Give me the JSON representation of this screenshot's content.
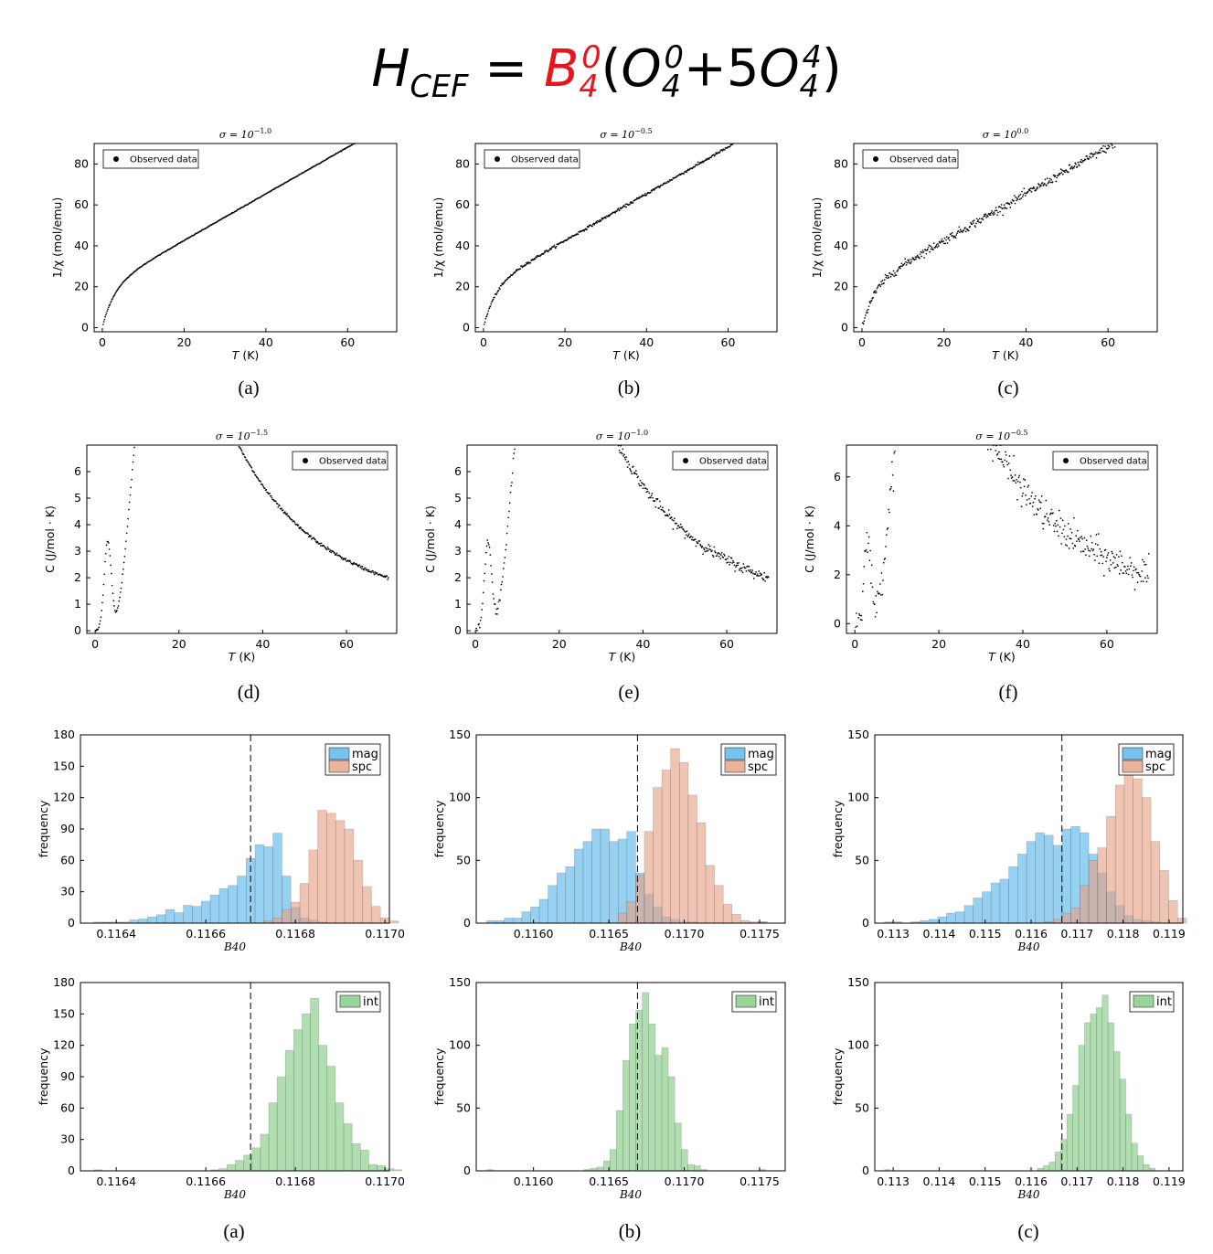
{
  "formula": {
    "lhs_main": "H",
    "lhs_sub": "CEF",
    "equals": "=",
    "coef_main": "B",
    "coef_sub": "4",
    "coef_sup": "0",
    "open": "(",
    "op1_main": "O",
    "op1_sub": "4",
    "op1_sup": "0",
    "plus": "+5",
    "op2_main": "O",
    "op2_sub": "4",
    "op2_sup": "4",
    "close": ")"
  },
  "colors": {
    "mag": "#56b4e9",
    "spc": "#e69f84",
    "int": "#7fc97f",
    "formula_highlight": "#e8141e"
  },
  "chart_data": [
    {
      "id": "chi-a",
      "type": "scatter",
      "caption": "(a)",
      "title": "σ = 10",
      "title_exp": "−1.0",
      "xlabel": "T (K)",
      "ylabel": "1/χ (mol/emu)",
      "xlim": [
        -2,
        72
      ],
      "ylim": [
        -2,
        90
      ],
      "xticks": [
        0,
        20,
        40,
        60
      ],
      "yticks": [
        0,
        20,
        40,
        60,
        80
      ],
      "legend": "Observed data",
      "legend_position": "top-left",
      "curve": "inv_susceptibility",
      "noise": 0.1,
      "n_points": 420
    },
    {
      "id": "chi-b",
      "type": "scatter",
      "caption": "(b)",
      "title": "σ = 10",
      "title_exp": "−0.5",
      "xlabel": "T (K)",
      "ylabel": "1/χ (mol/emu)",
      "xlim": [
        -2,
        72
      ],
      "ylim": [
        -2,
        90
      ],
      "xticks": [
        0,
        20,
        40,
        60
      ],
      "yticks": [
        0,
        20,
        40,
        60,
        80
      ],
      "legend": "Observed data",
      "legend_position": "top-left",
      "curve": "inv_susceptibility",
      "noise": 0.32,
      "n_points": 420
    },
    {
      "id": "chi-c",
      "type": "scatter",
      "caption": "(c)",
      "title": "σ = 10",
      "title_exp": "0.0",
      "xlabel": "T (K)",
      "ylabel": "1/χ (mol/emu)",
      "xlim": [
        -2,
        72
      ],
      "ylim": [
        -2,
        90
      ],
      "xticks": [
        0,
        20,
        40,
        60
      ],
      "yticks": [
        0,
        20,
        40,
        60,
        80
      ],
      "legend": "Observed data",
      "legend_position": "top-left",
      "curve": "inv_susceptibility",
      "noise": 1.0,
      "n_points": 420
    },
    {
      "id": "heat-d",
      "type": "scatter",
      "caption": "(d)",
      "title": "σ = 10",
      "title_exp": "−1.5",
      "xlabel": "T (K)",
      "ylabel": "C (J/mol · K)",
      "xlim": [
        -2,
        72
      ],
      "ylim": [
        -0.1,
        7.0
      ],
      "xticks": [
        0,
        20,
        40,
        60
      ],
      "yticks": [
        0,
        1,
        2,
        3,
        4,
        5,
        6
      ],
      "legend": "Observed data",
      "legend_position": "top-right",
      "curve": "specific_heat",
      "noise": 0.03,
      "n_points": 420
    },
    {
      "id": "heat-e",
      "type": "scatter",
      "caption": "(e)",
      "title": "σ = 10",
      "title_exp": "−1.0",
      "xlabel": "T (K)",
      "ylabel": "C (J/mol · K)",
      "xlim": [
        -2,
        72
      ],
      "ylim": [
        -0.1,
        7.0
      ],
      "xticks": [
        0,
        20,
        40,
        60
      ],
      "yticks": [
        0,
        1,
        2,
        3,
        4,
        5,
        6
      ],
      "legend": "Observed data",
      "legend_position": "top-right",
      "curve": "specific_heat",
      "noise": 0.1,
      "n_points": 420
    },
    {
      "id": "heat-f",
      "type": "scatter",
      "caption": "(f)",
      "title": "σ = 10",
      "title_exp": "−0.5",
      "xlabel": "T (K)",
      "ylabel": "C (J/mol · K)",
      "xlim": [
        -2,
        72
      ],
      "ylim": [
        -0.4,
        7.3
      ],
      "xticks": [
        0,
        20,
        40,
        60
      ],
      "yticks": [
        0,
        2,
        4,
        6
      ],
      "legend": "Observed data",
      "legend_position": "top-right",
      "curve": "specific_heat",
      "noise": 0.32,
      "n_points": 420
    },
    {
      "id": "hist-a",
      "type": "histogram",
      "caption": "",
      "xlabel": "B40",
      "ylabel": "frequency",
      "xlim": [
        0.11632,
        0.11701
      ],
      "ylim": [
        0,
        180
      ],
      "xticks": [
        0.1164,
        0.1166,
        0.1168,
        0.117
      ],
      "xtick_labels": [
        "0.1164",
        "0.1166",
        "0.1168",
        "0.1170"
      ],
      "yticks": [
        0,
        30,
        60,
        90,
        120,
        150,
        180
      ],
      "true_value": 0.1167,
      "legend_position": "top-right",
      "bins_start": 0.11635,
      "bin_width": 2e-05,
      "series": [
        {
          "name": "mag",
          "counts": [
            1,
            1,
            1,
            1,
            3,
            4,
            6,
            8,
            13,
            10,
            17,
            16,
            21,
            27,
            33,
            36,
            45,
            62,
            75,
            73,
            86,
            45,
            15,
            5,
            3,
            1,
            0,
            0,
            0,
            0,
            0,
            0,
            0,
            0
          ]
        },
        {
          "name": "spc",
          "counts": [
            0,
            0,
            0,
            0,
            0,
            0,
            0,
            0,
            0,
            0,
            0,
            0,
            0,
            0,
            0,
            0,
            0,
            0,
            0,
            2,
            5,
            13,
            20,
            38,
            70,
            108,
            105,
            98,
            90,
            60,
            35,
            16,
            5,
            2
          ]
        }
      ]
    },
    {
      "id": "hist-b",
      "type": "histogram",
      "caption": "",
      "xlabel": "B40",
      "ylabel": "frequency",
      "xlim": [
        0.11562,
        0.11767
      ],
      "ylim": [
        0,
        150
      ],
      "xticks": [
        0.116,
        0.1165,
        0.117,
        0.1175
      ],
      "xtick_labels": [
        "0.1160",
        "0.1165",
        "0.1170",
        "0.1175"
      ],
      "yticks": [
        0,
        50,
        100,
        150
      ],
      "true_value": 0.11669,
      "legend_position": "top-right",
      "bins_start": 0.11569,
      "bin_width": 5.81e-05,
      "series": [
        {
          "name": "mag",
          "counts": [
            2,
            2,
            4,
            4,
            9,
            13,
            19,
            30,
            40,
            45,
            59,
            65,
            75,
            75,
            65,
            67,
            73,
            40,
            23,
            13,
            5,
            3,
            1,
            1,
            0,
            0,
            0,
            0,
            0,
            0,
            0,
            1
          ]
        },
        {
          "name": "spc",
          "counts": [
            0,
            0,
            0,
            0,
            0,
            0,
            0,
            0,
            0,
            0,
            0,
            0,
            0,
            0,
            0,
            8,
            17,
            38,
            73,
            108,
            122,
            139,
            128,
            102,
            80,
            46,
            30,
            15,
            7,
            2,
            1,
            1
          ]
        }
      ]
    },
    {
      "id": "hist-c",
      "type": "histogram",
      "caption": "",
      "xlabel": "B40",
      "ylabel": "frequency",
      "xlim": [
        0.1126,
        0.1193
      ],
      "ylim": [
        0,
        150
      ],
      "xticks": [
        0.113,
        0.114,
        0.115,
        0.116,
        0.117,
        0.118,
        0.119
      ],
      "xtick_labels": [
        "0.113",
        "0.114",
        "0.115",
        "0.116",
        "0.117",
        "0.118",
        "0.119"
      ],
      "yticks": [
        0,
        50,
        100,
        150
      ],
      "true_value": 0.11667,
      "legend_position": "top-right",
      "bins_start": 0.11281,
      "bin_width": 0.0001932,
      "series": [
        {
          "name": "mag",
          "counts": [
            1,
            1,
            0,
            1,
            2,
            3,
            5,
            8,
            9,
            14,
            20,
            25,
            32,
            35,
            45,
            55,
            65,
            72,
            70,
            62,
            75,
            77,
            72,
            55,
            40,
            25,
            14,
            6,
            3,
            2,
            1,
            0,
            0
          ]
        },
        {
          "name": "spc",
          "counts": [
            0,
            0,
            0,
            0,
            0,
            0,
            0,
            0,
            0,
            0,
            0,
            0,
            0,
            0,
            0,
            0,
            0,
            0,
            1,
            3,
            8,
            12,
            30,
            50,
            60,
            85,
            110,
            120,
            115,
            100,
            65,
            42,
            18,
            4
          ]
        }
      ]
    },
    {
      "id": "hist-int-a",
      "type": "histogram",
      "caption": "(a)",
      "xlabel": "B40",
      "ylabel": "frequency",
      "xlim": [
        0.11632,
        0.11701
      ],
      "ylim": [
        0,
        180
      ],
      "xticks": [
        0.1164,
        0.1166,
        0.1168,
        0.117
      ],
      "xtick_labels": [
        "0.1164",
        "0.1166",
        "0.1168",
        "0.1170"
      ],
      "yticks": [
        0,
        30,
        60,
        90,
        120,
        150,
        180
      ],
      "true_value": 0.1167,
      "legend_position": "top-right",
      "bins_start": 0.11635,
      "bin_width": 1.86e-05,
      "series": [
        {
          "name": "int",
          "counts": [
            1,
            0,
            0,
            0,
            0,
            0,
            0,
            0,
            0,
            0,
            0,
            0,
            0,
            0,
            1,
            2,
            6,
            10,
            15,
            22,
            35,
            65,
            90,
            115,
            135,
            150,
            165,
            120,
            100,
            65,
            45,
            26,
            20,
            6,
            5,
            2,
            1
          ]
        }
      ]
    },
    {
      "id": "hist-int-b",
      "type": "histogram",
      "caption": "(b)",
      "xlabel": "B40",
      "ylabel": "frequency",
      "xlim": [
        0.11562,
        0.11767
      ],
      "ylim": [
        0,
        150
      ],
      "xticks": [
        0.116,
        0.1165,
        0.117,
        0.1175
      ],
      "xtick_labels": [
        "0.1160",
        "0.1165",
        "0.1170",
        "0.1175"
      ],
      "yticks": [
        0,
        50,
        100,
        150
      ],
      "true_value": 0.11669,
      "legend_position": "top-right",
      "bins_start": 0.11569,
      "bin_width": 4.3e-05,
      "series": [
        {
          "name": "int",
          "counts": [
            1,
            0,
            0,
            0,
            0,
            0,
            0,
            0,
            0,
            0,
            0,
            0,
            0,
            0,
            0,
            1,
            2,
            3,
            8,
            17,
            48,
            88,
            117,
            128,
            142,
            117,
            92,
            98,
            75,
            38,
            17,
            5,
            4,
            1,
            0,
            0,
            0,
            0,
            0,
            0,
            0,
            0,
            1
          ]
        }
      ]
    },
    {
      "id": "hist-int-c",
      "type": "histogram",
      "caption": "(c)",
      "xlabel": "B40",
      "ylabel": "frequency",
      "xlim": [
        0.1126,
        0.1193
      ],
      "ylim": [
        0,
        150
      ],
      "xticks": [
        0.113,
        0.114,
        0.115,
        0.116,
        0.117,
        0.118,
        0.119
      ],
      "xtick_labels": [
        "0.113",
        "0.114",
        "0.115",
        "0.116",
        "0.117",
        "0.118",
        "0.119"
      ],
      "yticks": [
        0,
        50,
        100,
        150
      ],
      "true_value": 0.11667,
      "legend_position": "top-right",
      "bins_start": 0.11281,
      "bin_width": 0.000128,
      "series": [
        {
          "name": "int",
          "counts": [
            1,
            0,
            0,
            0,
            0,
            0,
            0,
            0,
            0,
            0,
            0,
            0,
            0,
            0,
            0,
            0,
            0,
            0,
            0,
            0,
            0,
            0,
            0,
            0,
            0,
            0,
            2,
            4,
            7,
            15,
            25,
            45,
            68,
            100,
            118,
            125,
            130,
            140,
            118,
            95,
            73,
            45,
            22,
            12,
            5,
            2
          ]
        }
      ]
    }
  ]
}
